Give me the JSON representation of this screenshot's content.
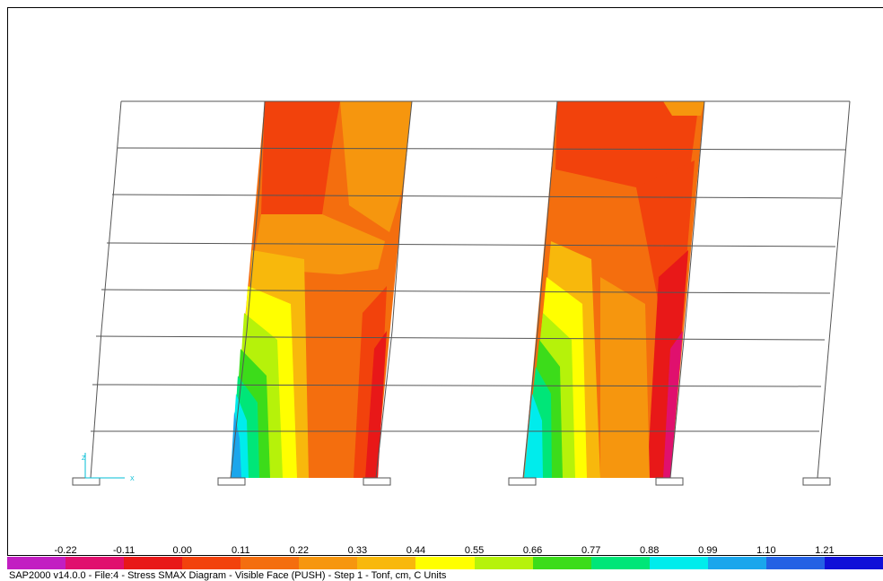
{
  "legend": {
    "labels": [
      "-0.22",
      "-0.11",
      "0.00",
      "0.11",
      "0.22",
      "0.33",
      "0.44",
      "0.55",
      "0.66",
      "0.77",
      "0.88",
      "0.99",
      "1.10",
      "1.21"
    ],
    "colors": [
      "#c21ec2",
      "#e0106e",
      "#e81818",
      "#f2420c",
      "#f46e0e",
      "#f6960e",
      "#f8b80c",
      "#ffff00",
      "#b6f20a",
      "#3cdc1a",
      "#00e678",
      "#00ecec",
      "#1aa6ec",
      "#2461e4",
      "#1010d8"
    ]
  },
  "axes_triad": {
    "x_label": "X",
    "z_label": "Z"
  },
  "status_bar": {
    "text": "SAP2000 v14.0.0 - File:4 -   Stress SMAX Diagram - Visible Face   (PUSH) - Step 1 - Tonf, cm, C Units"
  }
}
